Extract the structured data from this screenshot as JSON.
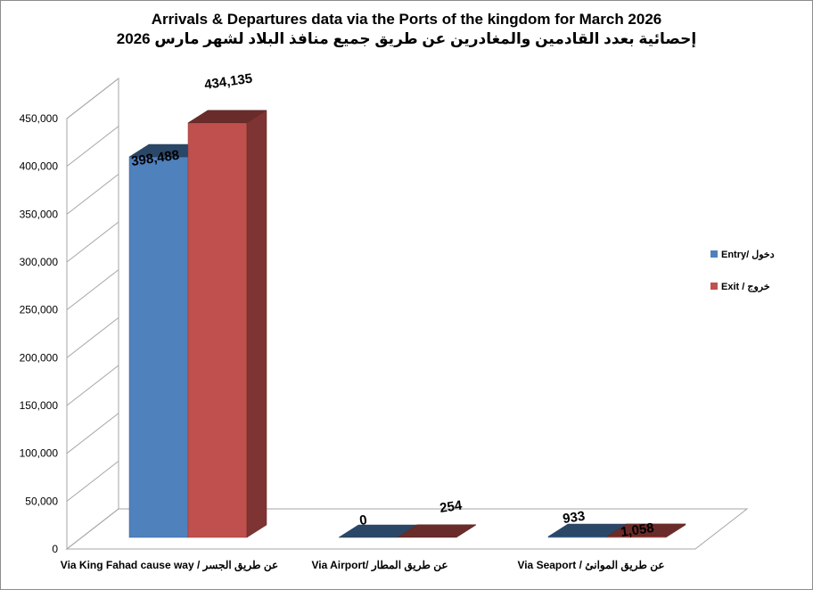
{
  "chart_data": {
    "type": "bar",
    "title": "Arrivals & Departures data via the Ports of the kingdom for March 2026",
    "subtitle": "إحصائية بعدد القادمين والمغادرين عن طريق جميع منافذ البلاد لشهر مارس 2026",
    "categories": [
      "Via King Fahad cause way / عن طريق الجسر",
      "Via Airport/ عن طريق المطار",
      "Via Seaport / عن طريق الموانئ"
    ],
    "series": [
      {
        "name": "Entry/ دخول",
        "color": "#4f81bd",
        "values": [
          398488,
          0,
          933
        ],
        "labels": [
          "398,488",
          "0",
          "933"
        ]
      },
      {
        "name": "Exit / خروج",
        "color": "#c0504d",
        "values": [
          434135,
          254,
          1058
        ],
        "labels": [
          "434,135",
          "254",
          "1,058"
        ]
      }
    ],
    "ylim": [
      0,
      450000
    ],
    "yticks": [
      "0",
      "50,000",
      "100,000",
      "150,000",
      "200,000",
      "250,000",
      "300,000",
      "350,000",
      "400,000",
      "450,000"
    ],
    "grid": true,
    "legend": "right",
    "xlabel": "",
    "ylabel": ""
  }
}
